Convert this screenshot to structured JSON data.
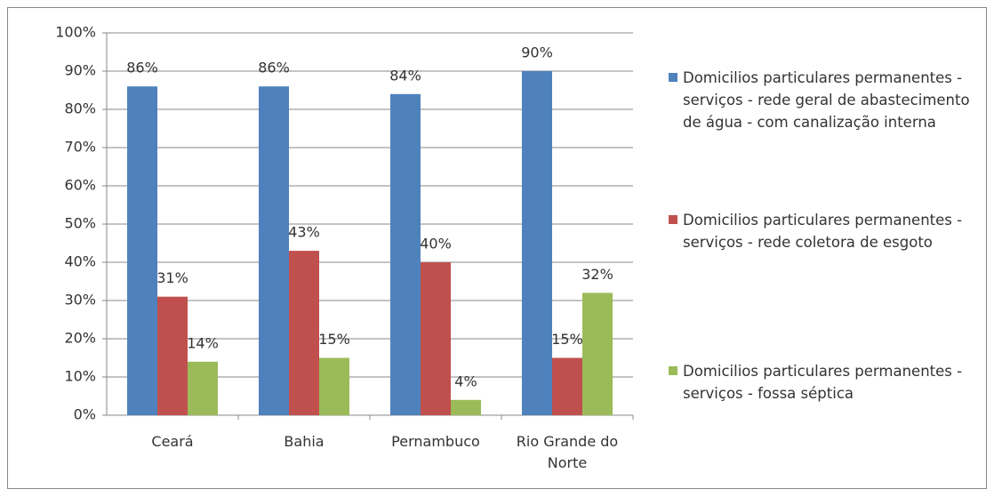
{
  "chart_data": {
    "type": "bar",
    "categories": [
      "Ceará",
      "Bahia",
      "Pernambuco",
      "Rio Grande do Norte"
    ],
    "series": [
      {
        "name": "Domicilios particulares permanentes - serviços - rede geral de abastecimento de água - com canalização interna",
        "color": "#4f81bd",
        "values": [
          86,
          86,
          84,
          90
        ],
        "value_labels": [
          "86%",
          "86%",
          "84%",
          "90%"
        ]
      },
      {
        "name": "Domicilios particulares permanentes - serviços - rede coletora de esgoto",
        "color": "#c0504d",
        "values": [
          31,
          43,
          40,
          15
        ],
        "value_labels": [
          "31%",
          "43%",
          "40%",
          "15%"
        ]
      },
      {
        "name": "Domicilios particulares permanentes - serviços - fossa séptica",
        "color": "#9bbb59",
        "values": [
          14,
          15,
          4,
          32
        ],
        "value_labels": [
          "14%",
          "15%",
          "4%",
          "32%"
        ]
      }
    ],
    "ylim": [
      0,
      100
    ],
    "yticks": [
      {
        "value": 0,
        "label": "0%"
      },
      {
        "value": 10,
        "label": "10%"
      },
      {
        "value": 20,
        "label": "20%"
      },
      {
        "value": 30,
        "label": "30%"
      },
      {
        "value": 40,
        "label": "40%"
      },
      {
        "value": 50,
        "label": "50%"
      },
      {
        "value": 60,
        "label": "60%"
      },
      {
        "value": 70,
        "label": "70%"
      },
      {
        "value": 80,
        "label": "80%"
      },
      {
        "value": 90,
        "label": "90%"
      },
      {
        "value": 100,
        "label": "100%"
      }
    ],
    "grid": true
  }
}
